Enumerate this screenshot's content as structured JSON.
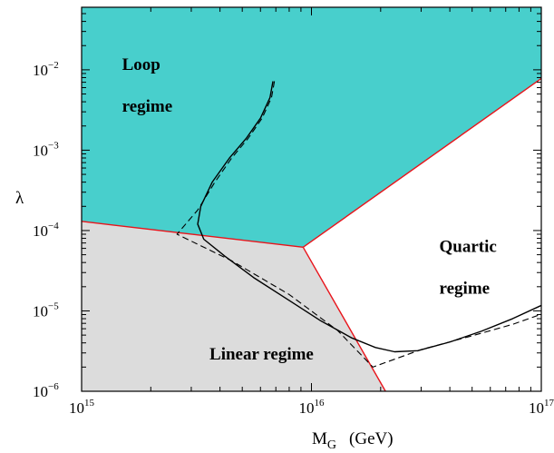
{
  "colors": {
    "loop_fill": "#48cfcc",
    "linear_fill": "#dcdcdc",
    "quartic_fill": "#ffffff",
    "boundary": "#e8141b",
    "curve": "#000000"
  },
  "chart_data": {
    "type": "line",
    "title": "",
    "xlabel": {
      "main": "M",
      "sub": "G",
      "unit": "(GeV)"
    },
    "ylabel": "λ",
    "xscale": "log",
    "yscale": "log",
    "xlim": [
      1000000000000000.0,
      1e+17
    ],
    "ylim": [
      1e-06,
      0.06
    ],
    "x_ticks": [
      {
        "value": 1000000000000000.0,
        "base": "10",
        "exp": "15"
      },
      {
        "value": 1e+16,
        "base": "10",
        "exp": "16"
      },
      {
        "value": 1e+17,
        "base": "10",
        "exp": "17"
      }
    ],
    "y_ticks": [
      {
        "value": 1e-06,
        "base": "10",
        "exp": "−6"
      },
      {
        "value": 1e-05,
        "base": "10",
        "exp": "−5"
      },
      {
        "value": 0.0001,
        "base": "10",
        "exp": "−4"
      },
      {
        "value": 0.001,
        "base": "10",
        "exp": "−3"
      },
      {
        "value": 0.01,
        "base": "10",
        "exp": "−2"
      }
    ],
    "regions": [
      {
        "name": "loop",
        "label_lines": [
          "Loop",
          "regime"
        ],
        "at": [
          1500000000000000.0,
          0.01
        ]
      },
      {
        "name": "quartic",
        "label_lines": [
          "Quartic",
          "regime"
        ],
        "at": [
          3.6e+16,
          5.4e-05
        ]
      },
      {
        "name": "linear",
        "label_lines": [
          "Linear regime"
        ],
        "at": [
          3600000000000000.0,
          2.5e-06
        ]
      }
    ],
    "boundaries": [
      {
        "name": "loop-linear",
        "points": [
          [
            1000000000000000.0,
            0.00013
          ],
          [
            9200000000000000.0,
            6.2e-05
          ]
        ]
      },
      {
        "name": "loop-quartic",
        "points": [
          [
            9200000000000000.0,
            6.2e-05
          ],
          [
            1e+17,
            0.0078
          ]
        ]
      },
      {
        "name": "linear-quartic",
        "points": [
          [
            9200000000000000.0,
            6.2e-05
          ],
          [
            2.1e+16,
            1e-06
          ]
        ]
      }
    ],
    "series": [
      {
        "style": "solid",
        "points": [
          [
            6800000000000000.0,
            0.0072
          ],
          [
            6600000000000000.0,
            0.0045
          ],
          [
            6000000000000000.0,
            0.0025
          ],
          [
            5200000000000000.0,
            0.0014
          ],
          [
            4400000000000000.0,
            0.0008
          ],
          [
            3700000000000000.0,
            0.0004
          ],
          [
            3300000000000000.0,
            0.0002
          ],
          [
            3200000000000000.0,
            0.00012
          ],
          [
            3400000000000000.0,
            7.8e-05
          ],
          [
            4200000000000000.0,
            4.8e-05
          ],
          [
            5600000000000000.0,
            2.6e-05
          ],
          [
            8000000000000000.0,
            1.35e-05
          ],
          [
            1.1e+16,
            7.5e-06
          ],
          [
            1.5e+16,
            4.6e-06
          ],
          [
            1.9e+16,
            3.5e-06
          ],
          [
            2.3e+16,
            3.1e-06
          ],
          [
            2.9e+16,
            3.2e-06
          ],
          [
            4e+16,
            4.1e-06
          ],
          [
            5.5e+16,
            5.6e-06
          ],
          [
            7.5e+16,
            8e-06
          ],
          [
            1e+17,
            1.17e-05
          ]
        ]
      },
      {
        "style": "dashed",
        "points": [
          [
            6900000000000000.0,
            0.0072
          ],
          [
            6700000000000000.0,
            0.0045
          ],
          [
            6100000000000000.0,
            0.0025
          ],
          [
            5300000000000000.0,
            0.0014
          ],
          [
            4500000000000000.0,
            0.0008
          ],
          [
            3800000000000000.0,
            0.0004
          ],
          [
            3200000000000000.0,
            0.00018
          ],
          [
            2600000000000000.0,
            9e-05
          ],
          [
            4500000000000000.0,
            4.2e-05
          ],
          [
            8000000000000000.0,
            1.6e-05
          ],
          [
            1.3e+16,
            5.7e-06
          ],
          [
            1.85e+16,
            2e-06
          ],
          [
            3e+16,
            3.3e-06
          ],
          [
            5e+16,
            4.9e-06
          ],
          [
            7.5e+16,
            6.8e-06
          ],
          [
            1e+17,
            9.1e-06
          ]
        ]
      }
    ],
    "grid": false,
    "legend": "none"
  }
}
